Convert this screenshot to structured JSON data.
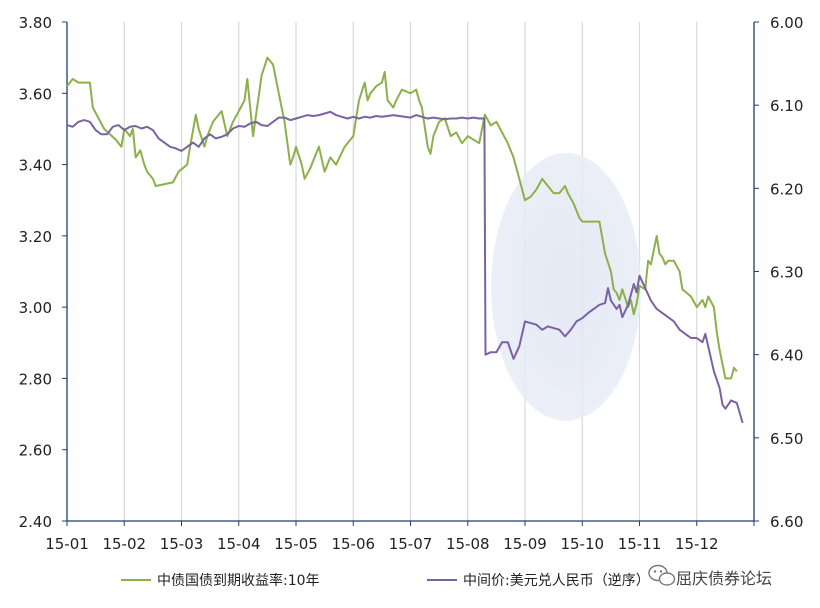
{
  "chart_data": {
    "type": "line",
    "x_ticks": [
      "15-01",
      "15-02",
      "15-03",
      "15-04",
      "15-05",
      "15-06",
      "15-07",
      "15-08",
      "15-09",
      "15-10",
      "15-11",
      "15-12"
    ],
    "y_left": {
      "lim": [
        2.4,
        3.8
      ],
      "ticks": [
        "3.80",
        "3.60",
        "3.40",
        "3.20",
        "3.00",
        "2.80",
        "2.60",
        "2.40"
      ]
    },
    "y_right": {
      "lim": [
        6.6,
        6.0
      ],
      "inverted": true,
      "ticks": [
        "6.00",
        "6.10",
        "6.20",
        "6.30",
        "6.40",
        "6.50",
        "6.60"
      ]
    },
    "grid": "vertical",
    "legend_position": "bottom",
    "highlight": "ellipse over 15-09 to 15-10",
    "series": [
      {
        "name": "中债国债到期收益率:10年",
        "axis": "left",
        "color": "#8cb04a",
        "points": [
          [
            0.0,
            3.62
          ],
          [
            0.1,
            3.64
          ],
          [
            0.2,
            3.63
          ],
          [
            0.4,
            3.63
          ],
          [
            0.45,
            3.56
          ],
          [
            0.55,
            3.53
          ],
          [
            0.65,
            3.5
          ],
          [
            0.85,
            3.47
          ],
          [
            0.95,
            3.45
          ],
          [
            1.0,
            3.5
          ],
          [
            1.1,
            3.48
          ],
          [
            1.15,
            3.5
          ],
          [
            1.2,
            3.42
          ],
          [
            1.28,
            3.44
          ],
          [
            1.35,
            3.4
          ],
          [
            1.4,
            3.38
          ],
          [
            1.5,
            3.36
          ],
          [
            1.55,
            3.34
          ],
          [
            1.85,
            3.35
          ],
          [
            1.95,
            3.38
          ],
          [
            2.1,
            3.4
          ],
          [
            2.15,
            3.45
          ],
          [
            2.25,
            3.54
          ],
          [
            2.3,
            3.5
          ],
          [
            2.4,
            3.45
          ],
          [
            2.45,
            3.48
          ],
          [
            2.55,
            3.52
          ],
          [
            2.7,
            3.55
          ],
          [
            2.8,
            3.48
          ],
          [
            2.9,
            3.52
          ],
          [
            3.0,
            3.55
          ],
          [
            3.1,
            3.58
          ],
          [
            3.15,
            3.64
          ],
          [
            3.25,
            3.48
          ],
          [
            3.4,
            3.65
          ],
          [
            3.5,
            3.7
          ],
          [
            3.6,
            3.68
          ],
          [
            3.7,
            3.6
          ],
          [
            3.8,
            3.52
          ],
          [
            3.9,
            3.4
          ],
          [
            3.95,
            3.42
          ],
          [
            4.0,
            3.45
          ],
          [
            4.1,
            3.4
          ],
          [
            4.15,
            3.36
          ],
          [
            4.25,
            3.39
          ],
          [
            4.4,
            3.45
          ],
          [
            4.5,
            3.38
          ],
          [
            4.6,
            3.42
          ],
          [
            4.7,
            3.4
          ],
          [
            4.85,
            3.45
          ],
          [
            5.0,
            3.48
          ],
          [
            5.1,
            3.58
          ],
          [
            5.2,
            3.63
          ],
          [
            5.25,
            3.58
          ],
          [
            5.3,
            3.6
          ],
          [
            5.4,
            3.62
          ],
          [
            5.5,
            3.63
          ],
          [
            5.55,
            3.66
          ],
          [
            5.6,
            3.58
          ],
          [
            5.7,
            3.56
          ],
          [
            5.75,
            3.58
          ],
          [
            5.85,
            3.61
          ],
          [
            6.0,
            3.6
          ],
          [
            6.1,
            3.61
          ],
          [
            6.15,
            3.58
          ],
          [
            6.2,
            3.56
          ],
          [
            6.3,
            3.45
          ],
          [
            6.35,
            3.43
          ],
          [
            6.4,
            3.48
          ],
          [
            6.5,
            3.52
          ],
          [
            6.6,
            3.53
          ],
          [
            6.7,
            3.48
          ],
          [
            6.8,
            3.49
          ],
          [
            6.9,
            3.46
          ],
          [
            7.0,
            3.48
          ],
          [
            7.1,
            3.47
          ],
          [
            7.2,
            3.46
          ],
          [
            7.3,
            3.54
          ],
          [
            7.4,
            3.51
          ],
          [
            7.5,
            3.52
          ],
          [
            7.6,
            3.49
          ],
          [
            7.7,
            3.46
          ],
          [
            7.8,
            3.42
          ],
          [
            7.9,
            3.36
          ],
          [
            8.0,
            3.3
          ],
          [
            8.1,
            3.31
          ],
          [
            8.2,
            3.33
          ],
          [
            8.3,
            3.36
          ],
          [
            8.4,
            3.34
          ],
          [
            8.5,
            3.32
          ],
          [
            8.6,
            3.32
          ],
          [
            8.7,
            3.34
          ],
          [
            8.75,
            3.32
          ],
          [
            8.85,
            3.29
          ],
          [
            8.95,
            3.25
          ],
          [
            9.0,
            3.24
          ],
          [
            9.3,
            3.24
          ],
          [
            9.4,
            3.15
          ],
          [
            9.5,
            3.1
          ],
          [
            9.55,
            3.05
          ],
          [
            9.6,
            3.04
          ],
          [
            9.65,
            3.02
          ],
          [
            9.7,
            3.05
          ],
          [
            9.8,
            3.0
          ],
          [
            9.85,
            3.02
          ],
          [
            9.9,
            2.98
          ],
          [
            9.95,
            3.01
          ],
          [
            10.0,
            3.06
          ],
          [
            10.1,
            3.05
          ],
          [
            10.15,
            3.13
          ],
          [
            10.2,
            3.12
          ],
          [
            10.3,
            3.2
          ],
          [
            10.35,
            3.15
          ],
          [
            10.4,
            3.14
          ],
          [
            10.45,
            3.12
          ],
          [
            10.5,
            3.13
          ],
          [
            10.6,
            3.13
          ],
          [
            10.7,
            3.1
          ],
          [
            10.75,
            3.05
          ],
          [
            10.9,
            3.03
          ],
          [
            11.0,
            3.0
          ],
          [
            11.1,
            3.02
          ],
          [
            11.15,
            3.0
          ],
          [
            11.2,
            3.03
          ],
          [
            11.3,
            3.0
          ],
          [
            11.35,
            2.93
          ],
          [
            11.4,
            2.88
          ],
          [
            11.45,
            2.84
          ],
          [
            11.5,
            2.8
          ],
          [
            11.6,
            2.8
          ],
          [
            11.65,
            2.83
          ],
          [
            11.7,
            2.82
          ]
        ]
      },
      {
        "name": "中间价:美元兑人民币（逆序）",
        "axis": "right",
        "color": "#7a62a3",
        "points": [
          [
            0.0,
            6.124
          ],
          [
            0.1,
            6.126
          ],
          [
            0.2,
            6.12
          ],
          [
            0.3,
            6.118
          ],
          [
            0.4,
            6.12
          ],
          [
            0.5,
            6.13
          ],
          [
            0.6,
            6.135
          ],
          [
            0.7,
            6.135
          ],
          [
            0.8,
            6.126
          ],
          [
            0.9,
            6.124
          ],
          [
            1.0,
            6.13
          ],
          [
            1.1,
            6.126
          ],
          [
            1.2,
            6.125
          ],
          [
            1.3,
            6.128
          ],
          [
            1.4,
            6.126
          ],
          [
            1.5,
            6.13
          ],
          [
            1.6,
            6.14
          ],
          [
            1.7,
            6.145
          ],
          [
            1.8,
            6.15
          ],
          [
            1.9,
            6.152
          ],
          [
            2.0,
            6.155
          ],
          [
            2.1,
            6.15
          ],
          [
            2.2,
            6.145
          ],
          [
            2.3,
            6.15
          ],
          [
            2.4,
            6.14
          ],
          [
            2.5,
            6.135
          ],
          [
            2.6,
            6.14
          ],
          [
            2.7,
            6.138
          ],
          [
            2.8,
            6.135
          ],
          [
            2.9,
            6.128
          ],
          [
            3.0,
            6.125
          ],
          [
            3.1,
            6.126
          ],
          [
            3.2,
            6.122
          ],
          [
            3.3,
            6.12
          ],
          [
            3.4,
            6.124
          ],
          [
            3.5,
            6.125
          ],
          [
            3.6,
            6.12
          ],
          [
            3.7,
            6.115
          ],
          [
            3.8,
            6.115
          ],
          [
            3.9,
            6.118
          ],
          [
            4.0,
            6.116
          ],
          [
            4.1,
            6.114
          ],
          [
            4.2,
            6.112
          ],
          [
            4.3,
            6.113
          ],
          [
            4.4,
            6.112
          ],
          [
            4.5,
            6.11
          ],
          [
            4.6,
            6.108
          ],
          [
            4.7,
            6.112
          ],
          [
            4.8,
            6.114
          ],
          [
            4.9,
            6.116
          ],
          [
            5.0,
            6.114
          ],
          [
            5.1,
            6.116
          ],
          [
            5.2,
            6.114
          ],
          [
            5.3,
            6.115
          ],
          [
            5.4,
            6.113
          ],
          [
            5.5,
            6.114
          ],
          [
            5.6,
            6.113
          ],
          [
            5.7,
            6.112
          ],
          [
            5.8,
            6.113
          ],
          [
            5.9,
            6.114
          ],
          [
            6.0,
            6.115
          ],
          [
            6.1,
            6.112
          ],
          [
            6.2,
            6.114
          ],
          [
            6.3,
            6.116
          ],
          [
            6.4,
            6.115
          ],
          [
            6.5,
            6.116
          ],
          [
            6.6,
            6.117
          ],
          [
            6.7,
            6.116
          ],
          [
            6.8,
            6.116
          ],
          [
            6.9,
            6.115
          ],
          [
            7.0,
            6.116
          ],
          [
            7.1,
            6.115
          ],
          [
            7.2,
            6.116
          ],
          [
            7.25,
            6.116
          ],
          [
            7.29,
            6.116
          ],
          [
            7.31,
            6.4
          ],
          [
            7.4,
            6.397
          ],
          [
            7.5,
            6.397
          ],
          [
            7.6,
            6.385
          ],
          [
            7.7,
            6.385
          ],
          [
            7.8,
            6.405
          ],
          [
            7.9,
            6.39
          ],
          [
            8.0,
            6.36
          ],
          [
            8.1,
            6.362
          ],
          [
            8.2,
            6.364
          ],
          [
            8.3,
            6.37
          ],
          [
            8.4,
            6.366
          ],
          [
            8.5,
            6.368
          ],
          [
            8.6,
            6.37
          ],
          [
            8.7,
            6.378
          ],
          [
            8.8,
            6.37
          ],
          [
            8.9,
            6.36
          ],
          [
            9.0,
            6.356
          ],
          [
            9.1,
            6.35
          ],
          [
            9.2,
            6.345
          ],
          [
            9.3,
            6.34
          ],
          [
            9.4,
            6.338
          ],
          [
            9.45,
            6.32
          ],
          [
            9.5,
            6.335
          ],
          [
            9.6,
            6.345
          ],
          [
            9.65,
            6.34
          ],
          [
            9.7,
            6.355
          ],
          [
            9.8,
            6.34
          ],
          [
            9.9,
            6.315
          ],
          [
            9.95,
            6.325
          ],
          [
            10.0,
            6.305
          ],
          [
            10.1,
            6.32
          ],
          [
            10.2,
            6.335
          ],
          [
            10.3,
            6.345
          ],
          [
            10.4,
            6.35
          ],
          [
            10.5,
            6.355
          ],
          [
            10.6,
            6.36
          ],
          [
            10.7,
            6.37
          ],
          [
            10.8,
            6.375
          ],
          [
            10.9,
            6.38
          ],
          [
            11.0,
            6.38
          ],
          [
            11.1,
            6.385
          ],
          [
            11.15,
            6.375
          ],
          [
            11.2,
            6.39
          ],
          [
            11.3,
            6.42
          ],
          [
            11.4,
            6.44
          ],
          [
            11.45,
            6.46
          ],
          [
            11.5,
            6.465
          ],
          [
            11.6,
            6.455
          ],
          [
            11.7,
            6.458
          ],
          [
            11.75,
            6.47
          ],
          [
            11.8,
            6.482
          ]
        ]
      }
    ]
  },
  "legend": [
    {
      "label": "中债国债到期收益率:10年",
      "color": "#8cb04a"
    },
    {
      "label": "中间价:美元兑人民币（逆序）",
      "color": "#7a62a3"
    }
  ],
  "watermark": {
    "text": "屈庆债券论坛"
  }
}
